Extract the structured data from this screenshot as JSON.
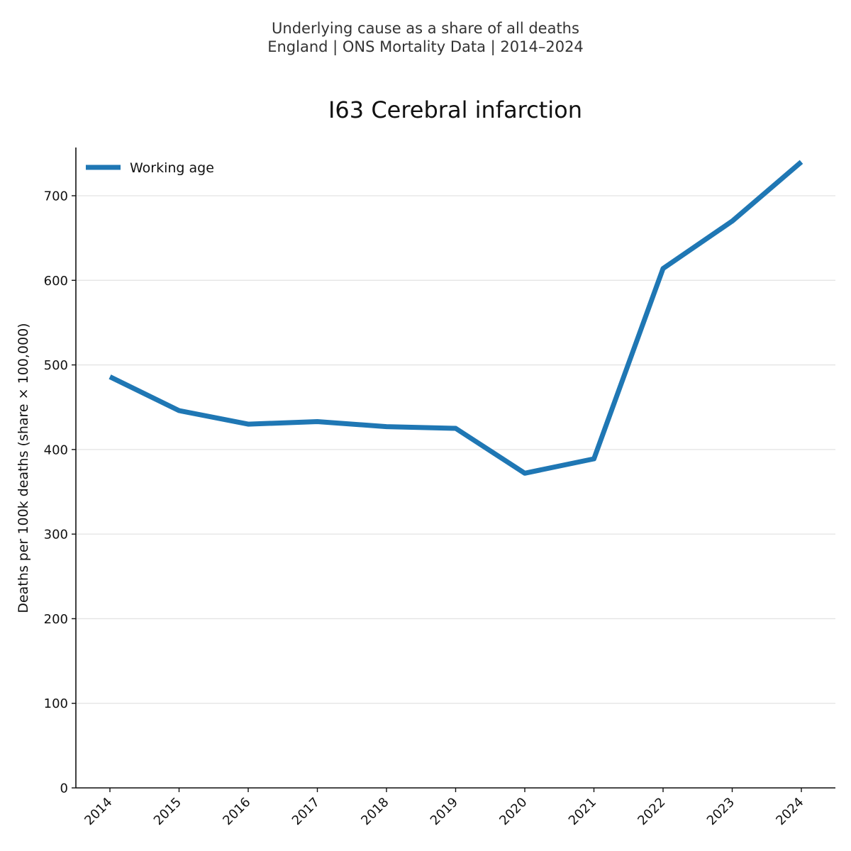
{
  "header": {
    "line1": "Underlying cause as a share of all deaths",
    "line2": "England | ONS Mortality Data | 2014–2024"
  },
  "chart_data": {
    "type": "line",
    "title": "I63 Cerebral infarction",
    "xlabel": "",
    "ylabel": "Deaths per 100k deaths (share × 100,000)",
    "categories": [
      "2014",
      "2015",
      "2016",
      "2017",
      "2018",
      "2019",
      "2020",
      "2021",
      "2022",
      "2023",
      "2024"
    ],
    "series": [
      {
        "name": "Working age",
        "color": "#1f77b4",
        "values": [
          486,
          446,
          430,
          433,
          427,
          425,
          372,
          389,
          614,
          670,
          740
        ]
      }
    ],
    "ylim": [
      0,
      757
    ],
    "yticks": [
      0,
      100,
      200,
      300,
      400,
      500,
      600,
      700
    ],
    "grid": "horizontal",
    "legend_position": "top-left"
  }
}
